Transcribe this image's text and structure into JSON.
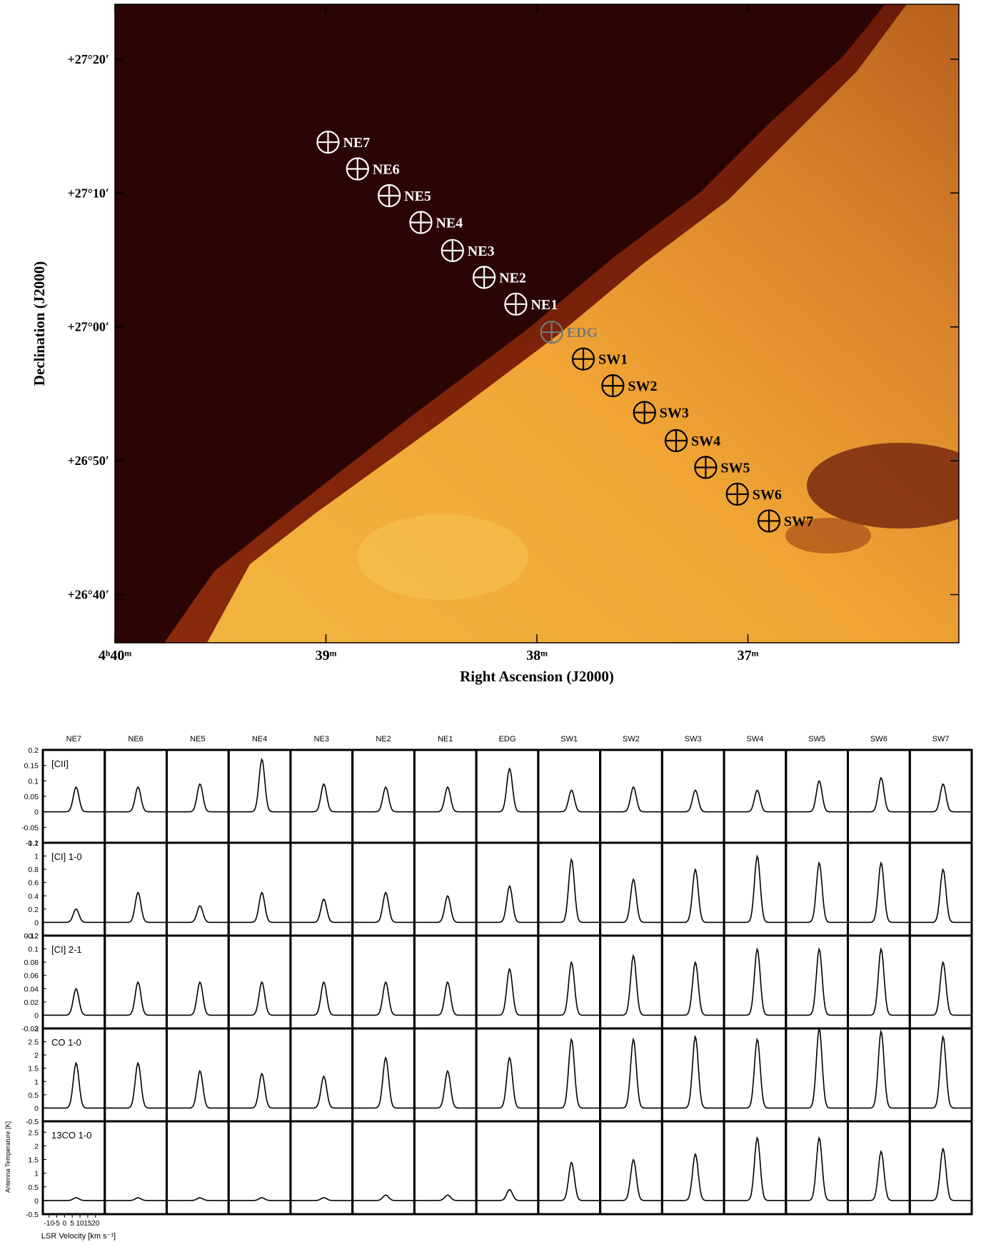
{
  "map": {
    "xlabel": "Right Ascension (J2000)",
    "ylabel": "Declination (J2000)",
    "xlim": [
      40,
      36
    ],
    "ylim": [
      -23.6,
      24.1
    ],
    "xticks": [
      {
        "value": 40,
        "label": "4ʰ40ᵐ"
      },
      {
        "value": 39,
        "label": "39ᵐ"
      },
      {
        "value": 38,
        "label": "38ᵐ"
      },
      {
        "value": 37,
        "label": "37ᵐ"
      }
    ],
    "yticks": [
      {
        "value": 20,
        "label": "+27°20′"
      },
      {
        "value": 10,
        "label": "+27°10′"
      },
      {
        "value": 0,
        "label": "+27°00′"
      },
      {
        "value": -10,
        "label": "+26°50′"
      },
      {
        "value": -20,
        "label": "+26°40′"
      }
    ],
    "markers": [
      {
        "label": "NE7",
        "ra": 38.99,
        "dec": 13.8,
        "color": "#ffffff"
      },
      {
        "label": "NE6",
        "ra": 38.85,
        "dec": 11.8,
        "color": "#ffffff"
      },
      {
        "label": "NE5",
        "ra": 38.7,
        "dec": 9.8,
        "color": "#ffffff"
      },
      {
        "label": "NE4",
        "ra": 38.55,
        "dec": 7.8,
        "color": "#ffffff"
      },
      {
        "label": "NE3",
        "ra": 38.4,
        "dec": 5.7,
        "color": "#ffffff"
      },
      {
        "label": "NE2",
        "ra": 38.25,
        "dec": 3.7,
        "color": "#ffffff"
      },
      {
        "label": "NE1",
        "ra": 38.1,
        "dec": 1.7,
        "color": "#ffffff"
      },
      {
        "label": "EDG",
        "ra": 37.93,
        "dec": -0.4,
        "color": "#777777"
      },
      {
        "label": "SW1",
        "ra": 37.78,
        "dec": -2.4,
        "color": "#000000"
      },
      {
        "label": "SW2",
        "ra": 37.64,
        "dec": -4.4,
        "color": "#000000"
      },
      {
        "label": "SW3",
        "ra": 37.49,
        "dec": -6.4,
        "color": "#000000"
      },
      {
        "label": "SW4",
        "ra": 37.34,
        "dec": -8.5,
        "color": "#000000"
      },
      {
        "label": "SW5",
        "ra": 37.2,
        "dec": -10.5,
        "color": "#000000"
      },
      {
        "label": "SW6",
        "ra": 37.05,
        "dec": -12.5,
        "color": "#000000"
      },
      {
        "label": "SW7",
        "ra": 36.9,
        "dec": -14.5,
        "color": "#000000"
      }
    ]
  },
  "spectra": {
    "columns": [
      "NE7",
      "NE6",
      "NE5",
      "NE4",
      "NE3",
      "NE2",
      "NE1",
      "EDG",
      "SW1",
      "SW2",
      "SW3",
      "SW4",
      "SW5",
      "SW6",
      "SW7"
    ],
    "xlabel": "LSR Velocity [km s⁻¹]",
    "ylabel": "Antenna Temperature [K]",
    "xlim": [
      -14,
      26
    ],
    "xticks": [
      -10,
      -5,
      0,
      5,
      10,
      15,
      20
    ],
    "line_center": 7.5,
    "rows": [
      {
        "label": "[CII]",
        "ylim": [
          -0.1,
          0.2
        ],
        "yticks": [
          -0.1,
          -0.05,
          0,
          0.05,
          0.1,
          0.15,
          0.2
        ],
        "peaks": [
          0.08,
          0.08,
          0.09,
          0.17,
          0.09,
          0.08,
          0.08,
          0.14,
          0.07,
          0.08,
          0.07,
          0.07,
          0.1,
          0.11,
          0.09
        ]
      },
      {
        "label": "[CI] 1-0",
        "ylim": [
          -0.2,
          1.2
        ],
        "yticks": [
          -0.2,
          0,
          0.2,
          0.4,
          0.6,
          0.8,
          1,
          1.2
        ],
        "peaks": [
          0.2,
          0.45,
          0.25,
          0.45,
          0.35,
          0.45,
          0.4,
          0.55,
          0.95,
          0.65,
          0.8,
          1.0,
          0.9,
          0.9,
          0.8
        ]
      },
      {
        "label": "[CI] 2-1",
        "ylim": [
          -0.02,
          0.12
        ],
        "yticks": [
          -0.02,
          0,
          0.02,
          0.04,
          0.06,
          0.08,
          0.1,
          0.12
        ],
        "peaks": [
          0.04,
          0.05,
          0.05,
          0.05,
          0.05,
          0.05,
          0.05,
          0.07,
          0.08,
          0.09,
          0.08,
          0.1,
          0.1,
          0.1,
          0.08
        ]
      },
      {
        "label": "CO 1-0",
        "ylim": [
          -0.5,
          3
        ],
        "yticks": [
          -0.5,
          0,
          0.5,
          1,
          1.5,
          2,
          2.5,
          3
        ],
        "peaks": [
          1.7,
          1.7,
          1.4,
          1.3,
          1.2,
          1.9,
          1.4,
          1.9,
          2.6,
          2.6,
          2.7,
          2.6,
          3.0,
          2.9,
          2.7
        ]
      },
      {
        "label": "13CO 1-0",
        "ylim": [
          -0.5,
          2.9
        ],
        "yticks": [
          -0.5,
          0,
          0.5,
          1,
          1.5,
          2,
          2.5
        ],
        "peaks": [
          0.1,
          0.1,
          0.1,
          0.1,
          0.1,
          0.2,
          0.2,
          0.4,
          1.4,
          1.5,
          1.7,
          2.3,
          2.3,
          1.8,
          1.9
        ]
      }
    ]
  }
}
